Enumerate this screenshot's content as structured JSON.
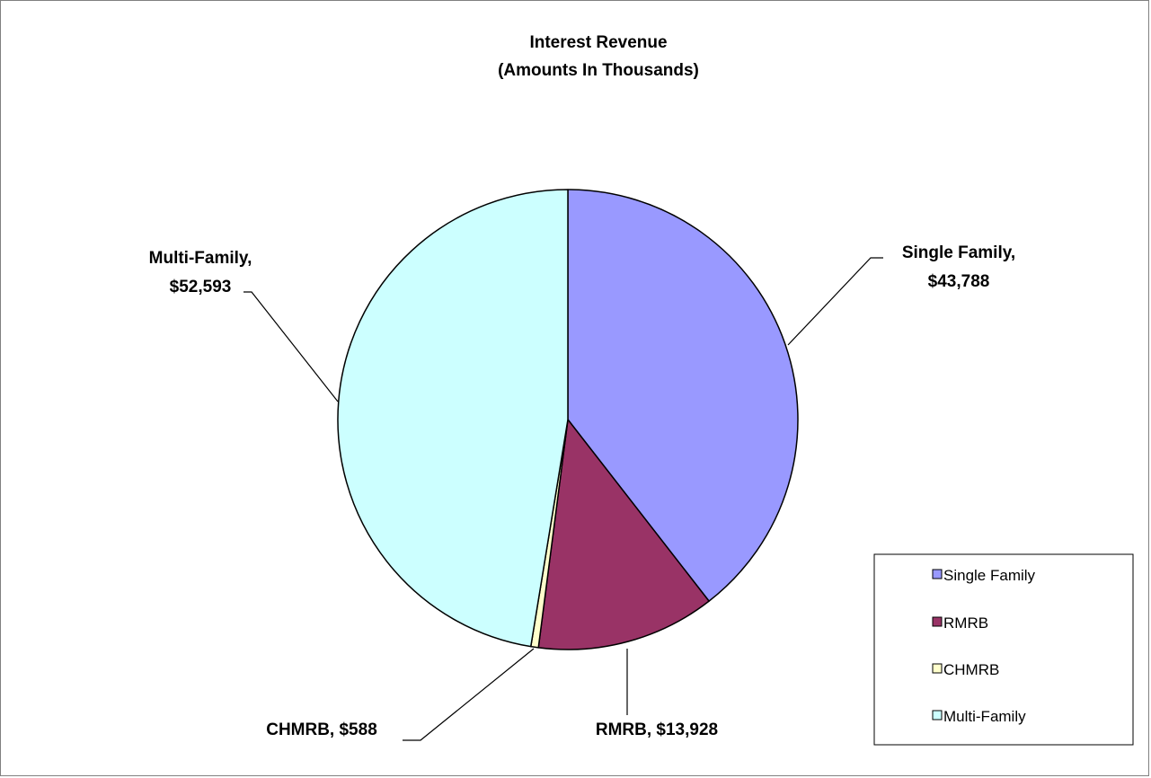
{
  "chart_data": {
    "type": "pie",
    "title": "Interest Revenue",
    "subtitle": "(Amounts In Thousands)",
    "slices": [
      {
        "label": "Single Family",
        "value": 43788,
        "value_text": "$43,788",
        "color": "#9999FF"
      },
      {
        "label": "RMRB",
        "value": 13928,
        "value_text": "$13,928",
        "color": "#993366"
      },
      {
        "label": "CHMRB",
        "value": 588,
        "value_text": "$588",
        "color": "#FFFFCC"
      },
      {
        "label": "Multi-Family",
        "value": 52593,
        "value_text": "$52,593",
        "color": "#CCFFFF"
      }
    ],
    "data_labels": [
      {
        "lines": [
          "Single Family,",
          "$43,788"
        ]
      },
      {
        "lines": [
          "RMRB, $13,928"
        ]
      },
      {
        "lines": [
          "CHMRB, $588"
        ]
      },
      {
        "lines": [
          "Multi-Family,",
          "$52,593"
        ]
      }
    ],
    "legend": {
      "position": "right",
      "entries": [
        "Single Family",
        "RMRB",
        "CHMRB",
        "Multi-Family"
      ]
    },
    "start_angle": "12 o'clock",
    "direction": "clockwise"
  }
}
